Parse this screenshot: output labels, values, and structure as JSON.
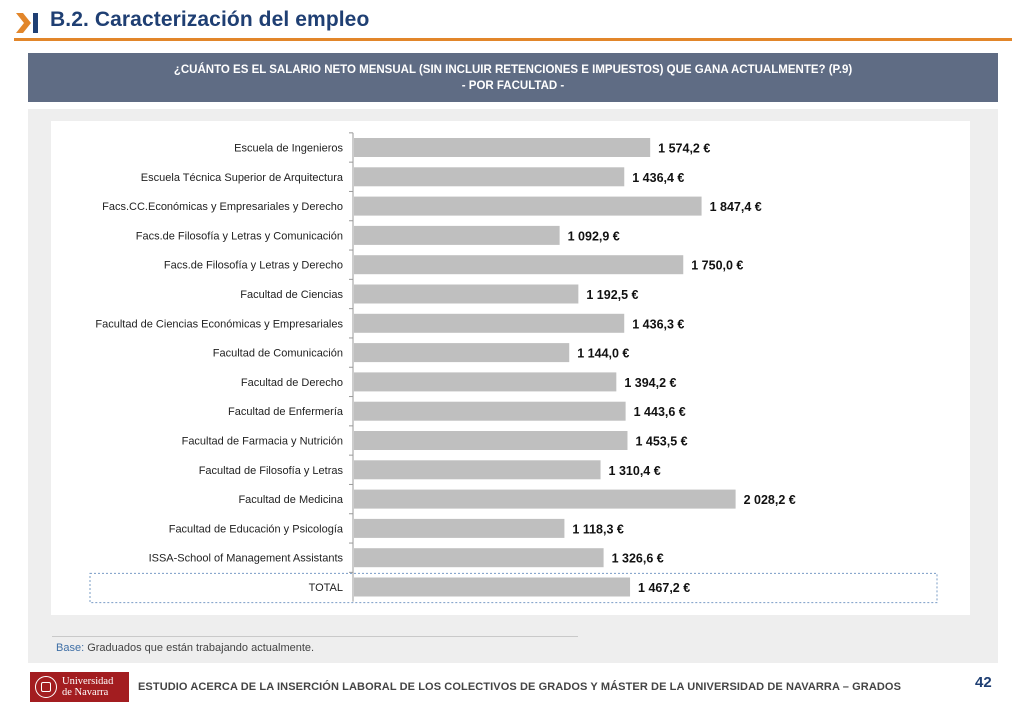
{
  "header": {
    "title": "B.2. Caracterización del empleo",
    "accent_color": "#e2862a",
    "title_color": "#1f3f73",
    "icon": "chevron-bar-icon"
  },
  "banner": {
    "line1": "¿CUÁNTO ES EL SALARIO NETO MENSUAL (SIN INCLUIR RETENCIONES E IMPUESTOS) QUE GANA ACTUALMENTE? (P.9)",
    "line2": "- POR FACULTAD -",
    "bg_color": "#5f6c84"
  },
  "chart_data": {
    "type": "bar",
    "orientation": "horizontal",
    "categories": [
      "Escuela de Ingenieros",
      "Escuela Técnica Superior de Arquitectura",
      "Facs.CC.Económicas y Empresariales y Derecho",
      "Facs.de Filosofía y Letras y Comunicación",
      "Facs.de Filosofía y Letras y Derecho",
      "Facultad de Ciencias",
      "Facultad de Ciencias Económicas y Empresariales",
      "Facultad de Comunicación",
      "Facultad de Derecho",
      "Facultad de Enfermería",
      "Facultad de Farmacia y Nutrición",
      "Facultad de Filosofía y Letras",
      "Facultad de Medicina",
      "Facultad de Educación y Psicología",
      "ISSA-School of Management Assistants",
      "TOTAL"
    ],
    "values": [
      1574.2,
      1436.4,
      1847.4,
      1092.9,
      1750.0,
      1192.5,
      1436.3,
      1144.0,
      1394.2,
      1443.6,
      1453.5,
      1310.4,
      2028.2,
      1118.3,
      1326.6,
      1467.2
    ],
    "value_labels": [
      "1 574,2 €",
      "1 436,4 €",
      "1 847,4 €",
      "1 092,9 €",
      "1 750,0 €",
      "1 192,5 €",
      "1 436,3 €",
      "1 144,0 €",
      "1 394,2 €",
      "1 443,6 €",
      "1 453,5 €",
      "1 310,4 €",
      "2 028,2 €",
      "1 118,3 €",
      "1 326,6 €",
      "1 467,2 €"
    ],
    "highlight_category": "TOTAL",
    "xlim": [
      0,
      2700
    ],
    "grid": false,
    "legend": "none",
    "bar_color": "#bfbfbf"
  },
  "base_note": {
    "label": "Base:",
    "text": " Graduados que están trabajando actualmente."
  },
  "footer": {
    "logo_line1": "Universidad",
    "logo_line2": "de Navarra",
    "logo_icon": "university-seal-icon",
    "text": "ESTUDIO ACERCA DE LA INSERCIÓN LABORAL DE LOS COLECTIVOS DE GRADOS Y MÁSTER DE LA UNIVERSIDAD DE NAVARRA – GRADOS",
    "page_number": "42"
  }
}
